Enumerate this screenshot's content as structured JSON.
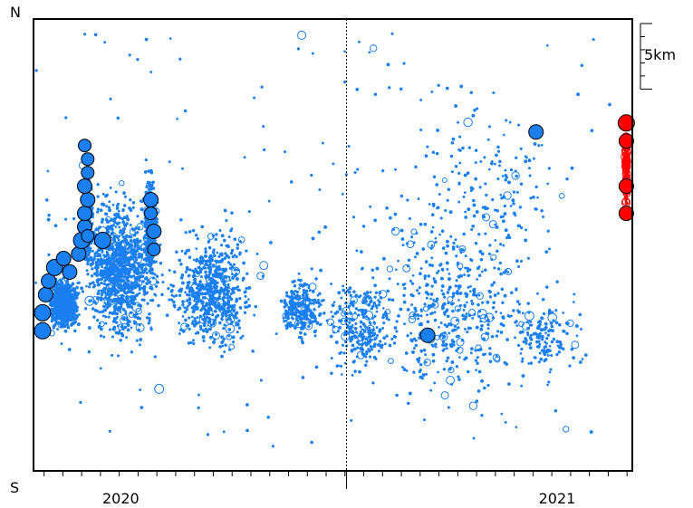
{
  "chart_data": {
    "type": "scatter",
    "title": "",
    "xlabel": "",
    "ylabel": "",
    "x_unit": "year (decimal)",
    "xlim": [
      2019.46,
      2021.45
    ],
    "ylim": [
      0,
      100
    ],
    "y_top_label": "N",
    "y_bottom_label": "S",
    "x_tick_labels": [
      {
        "label": "2020",
        "x": 2019.75
      },
      {
        "label": "2021",
        "x": 2021.2
      }
    ],
    "year_boundary": 2020.5,
    "minor_ticks_per_year": 16,
    "scale_bar": {
      "label": "5km",
      "length_km": 5,
      "top_y": 99,
      "bottom_y": 84.5
    },
    "grid": false,
    "legend": "none",
    "colors": {
      "earlier": "#1a7ff0",
      "recent": "#ff0000",
      "frame": "#000000"
    },
    "series": [
      {
        "color": "#1a7ff0",
        "large_events": [
          {
            "x": 2019.49,
            "y": 35,
            "size": 9
          },
          {
            "x": 2019.49,
            "y": 31,
            "size": 9
          },
          {
            "x": 2019.5,
            "y": 39,
            "size": 8
          },
          {
            "x": 2019.51,
            "y": 42,
            "size": 8
          },
          {
            "x": 2019.53,
            "y": 45,
            "size": 9
          },
          {
            "x": 2019.56,
            "y": 47,
            "size": 8
          },
          {
            "x": 2019.58,
            "y": 44,
            "size": 8
          },
          {
            "x": 2019.61,
            "y": 48,
            "size": 8
          },
          {
            "x": 2019.62,
            "y": 51,
            "size": 9
          },
          {
            "x": 2019.63,
            "y": 54,
            "size": 8
          },
          {
            "x": 2019.63,
            "y": 57,
            "size": 8
          },
          {
            "x": 2019.64,
            "y": 60,
            "size": 8
          },
          {
            "x": 2019.63,
            "y": 63,
            "size": 8
          },
          {
            "x": 2019.64,
            "y": 66,
            "size": 7
          },
          {
            "x": 2019.64,
            "y": 69,
            "size": 7
          },
          {
            "x": 2019.63,
            "y": 72,
            "size": 7
          },
          {
            "x": 2019.64,
            "y": 52,
            "size": 7
          },
          {
            "x": 2019.69,
            "y": 51,
            "size": 9
          },
          {
            "x": 2019.85,
            "y": 60,
            "size": 8
          },
          {
            "x": 2019.85,
            "y": 57,
            "size": 7
          },
          {
            "x": 2019.86,
            "y": 53,
            "size": 8
          },
          {
            "x": 2019.86,
            "y": 49,
            "size": 7
          },
          {
            "x": 2020.77,
            "y": 30,
            "size": 8
          },
          {
            "x": 2021.13,
            "y": 75,
            "size": 8
          }
        ]
      },
      {
        "color": "#ff0000",
        "large_events": [
          {
            "x": 2021.43,
            "y": 77,
            "size": 9
          },
          {
            "x": 2021.43,
            "y": 73,
            "size": 8
          },
          {
            "x": 2021.43,
            "y": 63,
            "size": 8
          },
          {
            "x": 2021.43,
            "y": 57,
            "size": 8
          }
        ]
      }
    ]
  }
}
